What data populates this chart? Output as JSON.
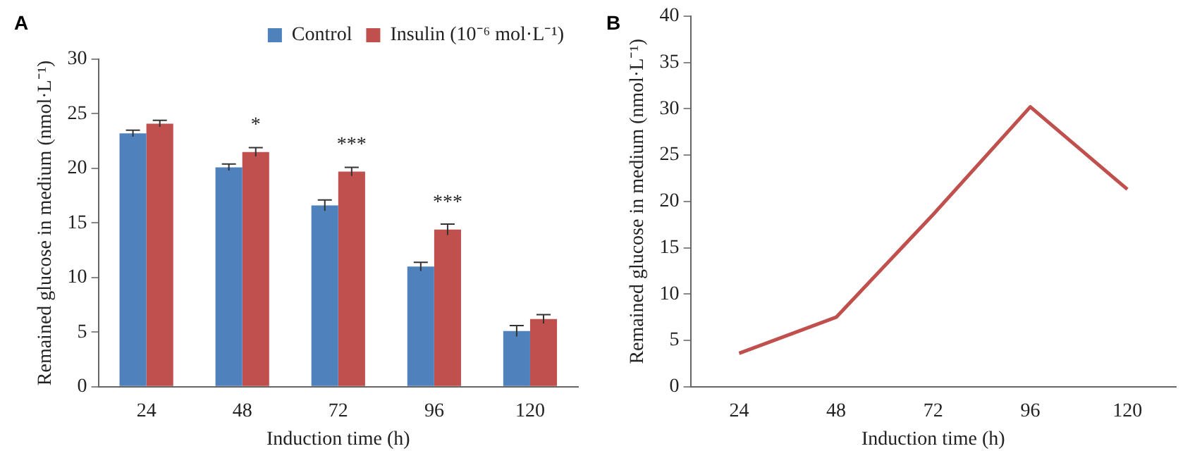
{
  "chart_data": [
    {
      "type": "bar",
      "categories": [
        "24",
        "48",
        "72",
        "96",
        "120"
      ],
      "xlabel": "Induction time (h)",
      "ylabel": "Remained glucose in medium (nmol·L⁻¹)",
      "ylim": [
        0,
        30
      ],
      "yticks": [
        0,
        5,
        10,
        15,
        20,
        25,
        30
      ],
      "grid": false,
      "legend": "top right",
      "series": [
        {
          "name": "Control",
          "color": "#4f81bd",
          "values": [
            23.2,
            20.1,
            16.6,
            11.0,
            5.1
          ],
          "errors": [
            0.3,
            0.3,
            0.5,
            0.4,
            0.5
          ]
        },
        {
          "name": "Insulin (10⁻⁶ mol·L⁻¹)",
          "color": "#c0504d",
          "values": [
            24.1,
            21.5,
            19.7,
            14.4,
            6.2
          ],
          "errors": [
            0.3,
            0.4,
            0.4,
            0.5,
            0.4
          ]
        }
      ],
      "annotations": [
        "A",
        {
          "text": "*",
          "x": "48",
          "y": 21.5
        },
        {
          "text": "***",
          "x": "72",
          "y": 19.7
        },
        {
          "text": "***",
          "x": "96",
          "y": 14.4
        }
      ]
    },
    {
      "type": "line",
      "categories": [
        "24",
        "48",
        "72",
        "96",
        "120"
      ],
      "xlabel": "Induction time (h)",
      "ylabel": "Remained glucose in medium (nmol·L⁻¹)",
      "ylim": [
        0,
        40
      ],
      "yticks": [
        0,
        5,
        10,
        15,
        20,
        25,
        30,
        35,
        40
      ],
      "grid": false,
      "legend": false,
      "marker": "none",
      "series": [
        {
          "color": "#c0504d",
          "values": [
            3.6,
            7.5,
            18.6,
            30.2,
            21.3
          ]
        }
      ],
      "annotations": [
        "B"
      ]
    }
  ]
}
